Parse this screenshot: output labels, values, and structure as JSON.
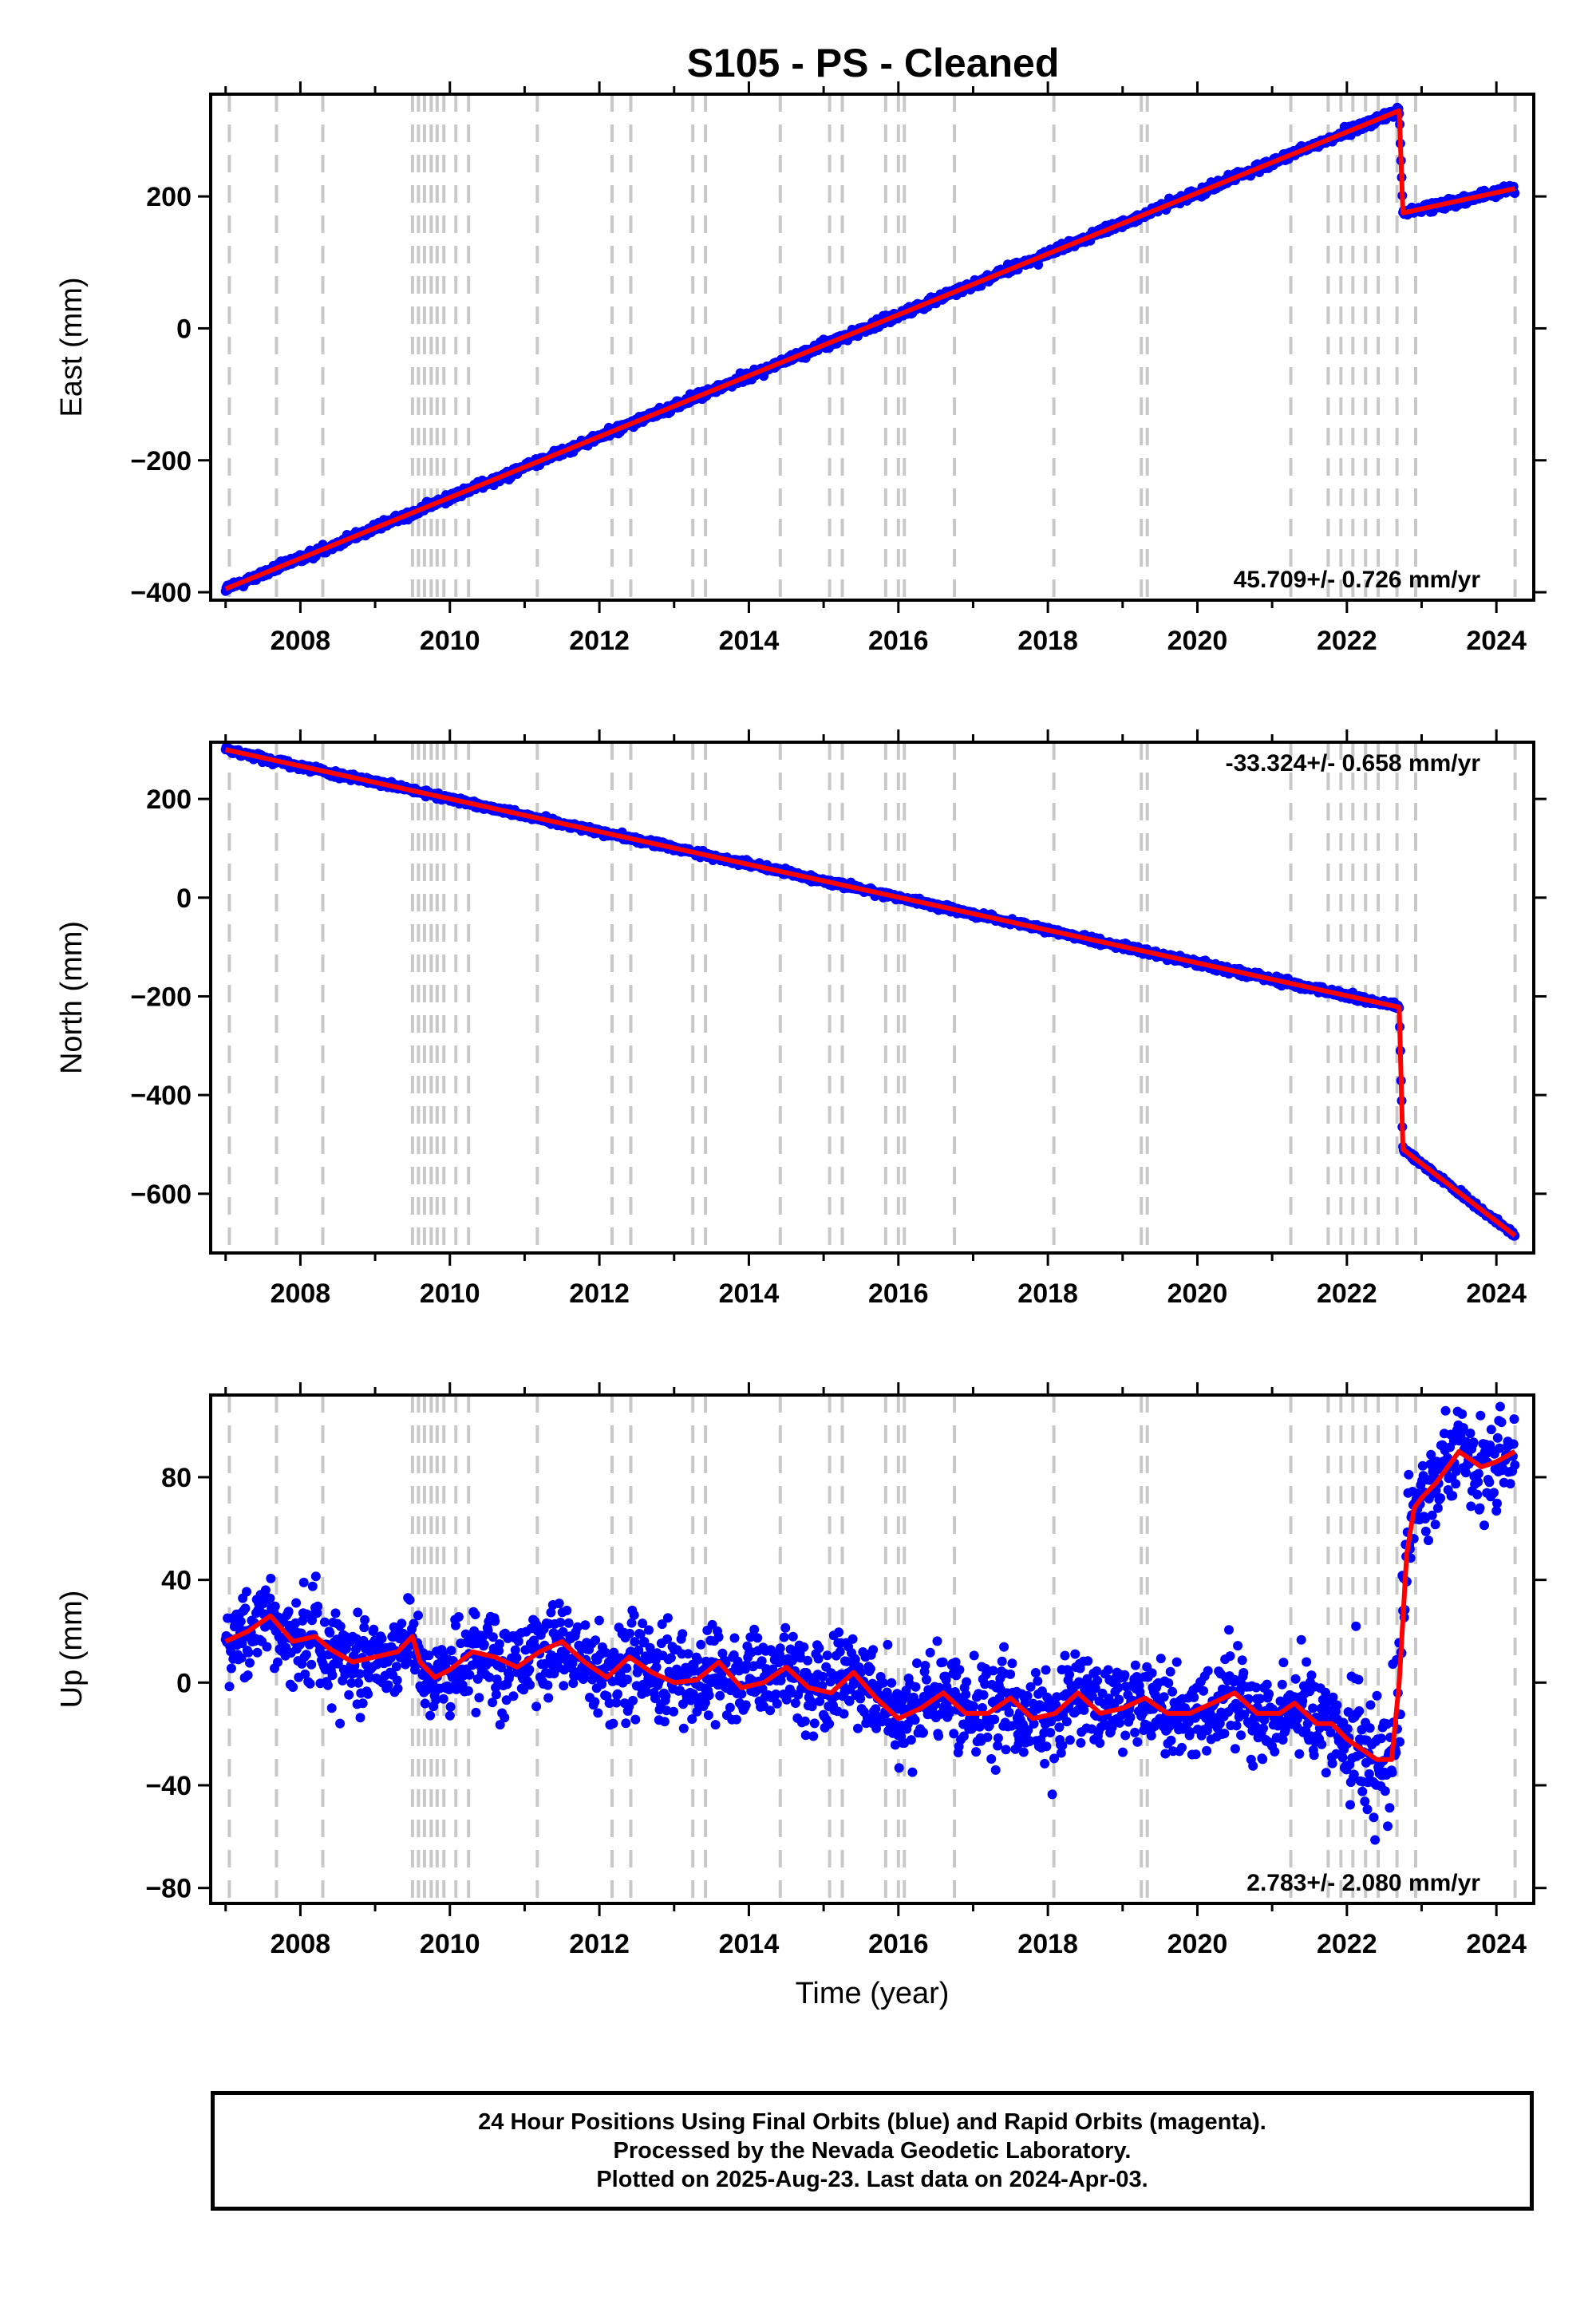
{
  "title": "S105  - PS - Cleaned",
  "colors": {
    "daily_points": "#0000ff",
    "model_line": "#ff0000",
    "event_lines": "#c8c8c8",
    "axes": "#000000"
  },
  "chart_data": [
    {
      "type": "scatter",
      "panel": "east",
      "ylabel": "East (mm)",
      "xlabel": "",
      "xlim": [
        2006.8,
        2024.5
      ],
      "ylim": [
        -412,
        355
      ],
      "yticks": [
        -400,
        -200,
        0,
        200
      ],
      "xticks": [
        2008,
        2010,
        2012,
        2014,
        2016,
        2018,
        2020,
        2022,
        2024
      ],
      "rate_label": "45.709+/- 0.726 mm/yr",
      "rate_label_position": "bottom-right",
      "series": [
        {
          "kind": "points",
          "values": "daily positions (dense, approx. linear trend with offset)"
        }
      ],
      "model": {
        "segments": [
          {
            "x": [
              2007.0,
              2022.7
            ],
            "y": [
              -395,
              330
            ]
          },
          {
            "x": [
              2022.7,
              2022.75
            ],
            "y": [
              330,
              175
            ]
          },
          {
            "x": [
              2022.75,
              2024.25
            ],
            "y": [
              175,
              212
            ]
          }
        ]
      }
    },
    {
      "type": "scatter",
      "panel": "north",
      "ylabel": "North (mm)",
      "xlabel": "",
      "xlim": [
        2006.8,
        2024.5
      ],
      "ylim": [
        -720,
        315
      ],
      "yticks": [
        -600,
        -400,
        -200,
        0,
        200
      ],
      "xticks": [
        2008,
        2010,
        2012,
        2014,
        2016,
        2018,
        2020,
        2022,
        2024
      ],
      "rate_label": "-33.324+/- 0.658 mm/yr",
      "rate_label_position": "top-right",
      "model": {
        "segments": [
          {
            "x": [
              2007.0,
              2022.7
            ],
            "y": [
              300,
              -222
            ]
          },
          {
            "x": [
              2022.7,
              2022.75
            ],
            "y": [
              -222,
              -510
            ]
          },
          {
            "x": [
              2022.75,
              2024.25
            ],
            "y": [
              -510,
              -685
            ]
          }
        ]
      }
    },
    {
      "type": "scatter",
      "panel": "up",
      "ylabel": "Up (mm)",
      "xlabel": "Time (year)",
      "xlim": [
        2006.8,
        2024.5
      ],
      "ylim": [
        -86,
        112
      ],
      "yticks": [
        -80,
        -40,
        0,
        40,
        80
      ],
      "xticks": [
        2008,
        2010,
        2012,
        2014,
        2016,
        2018,
        2020,
        2022,
        2024
      ],
      "rate_label": "2.783+/- 2.080 mm/yr",
      "rate_label_position": "bottom-right",
      "model_points": {
        "x": [
          2007.0,
          2007.3,
          2007.6,
          2007.9,
          2008.2,
          2008.4,
          2008.7,
          2009.0,
          2009.3,
          2009.5,
          2009.6,
          2009.8,
          2010.0,
          2010.3,
          2010.6,
          2010.9,
          2011.2,
          2011.5,
          2011.8,
          2012.1,
          2012.4,
          2012.7,
          2013.0,
          2013.3,
          2013.6,
          2013.9,
          2014.2,
          2014.5,
          2014.8,
          2015.1,
          2015.4,
          2015.7,
          2016.0,
          2016.3,
          2016.6,
          2016.9,
          2017.2,
          2017.5,
          2017.8,
          2018.1,
          2018.4,
          2018.7,
          2019.0,
          2019.3,
          2019.6,
          2019.9,
          2020.2,
          2020.5,
          2020.8,
          2021.1,
          2021.3,
          2021.6,
          2021.8,
          2022.0,
          2022.2,
          2022.4,
          2022.6,
          2022.7,
          2022.8,
          2022.9,
          2023.0,
          2023.2,
          2023.5,
          2023.8,
          2024.0,
          2024.25
        ],
        "y": [
          16,
          20,
          26,
          16,
          18,
          13,
          8,
          10,
          12,
          18,
          8,
          2,
          5,
          12,
          10,
          6,
          12,
          16,
          8,
          2,
          10,
          4,
          0,
          1,
          8,
          -2,
          0,
          6,
          -2,
          -4,
          4,
          -6,
          -14,
          -10,
          -4,
          -12,
          -12,
          -6,
          -14,
          -12,
          -4,
          -12,
          -10,
          -6,
          -12,
          -12,
          -8,
          -4,
          -12,
          -12,
          -8,
          -16,
          -16,
          -22,
          -26,
          -30,
          -30,
          0,
          50,
          68,
          72,
          78,
          90,
          84,
          86,
          90
        ]
      }
    }
  ],
  "event_lines_years": [
    2007.05,
    2007.68,
    2008.3,
    2009.5,
    2009.58,
    2009.66,
    2009.75,
    2009.83,
    2009.92,
    2010.08,
    2010.25,
    2011.17,
    2012.17,
    2012.42,
    2013.25,
    2013.42,
    2014.42,
    2015.08,
    2015.25,
    2015.83,
    2016.0,
    2016.08,
    2016.75,
    2018.08,
    2019.25,
    2019.33,
    2021.25,
    2021.75,
    2021.92,
    2022.08,
    2022.25,
    2022.42,
    2022.67,
    2022.92,
    2024.25
  ],
  "footer": {
    "line1": "24 Hour Positions Using Final Orbits (blue) and Rapid Orbits (magenta).",
    "line2": "Processed by the Nevada Geodetic Laboratory.",
    "line3": "Plotted on 2025-Aug-23. Last data on 2024-Apr-03."
  }
}
